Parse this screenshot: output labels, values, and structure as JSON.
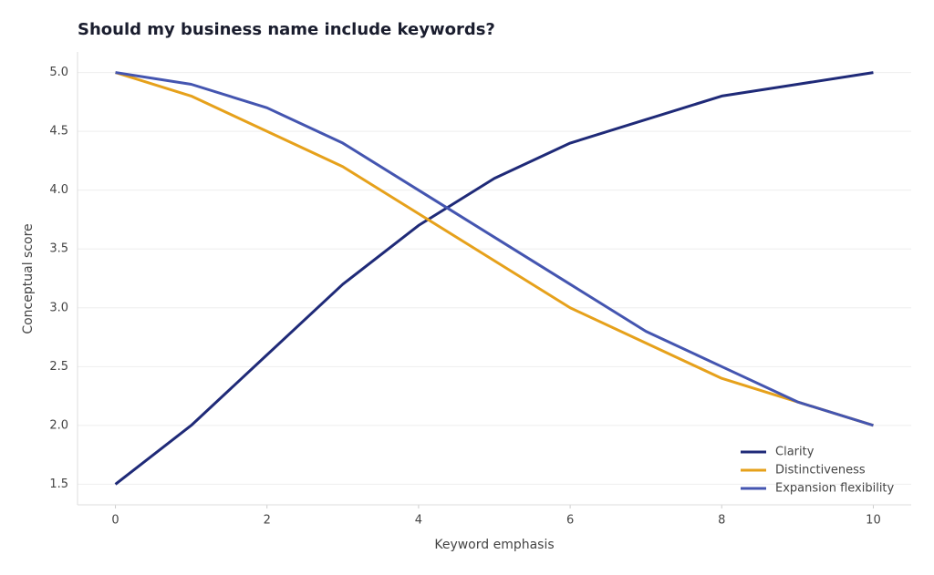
{
  "chart_data": {
    "type": "line",
    "title": "Should my business name include keywords?",
    "xlabel": "Keyword emphasis",
    "ylabel": "Conceptual score",
    "x": [
      0,
      1,
      2,
      3,
      4,
      5,
      6,
      7,
      8,
      9,
      10
    ],
    "series": [
      {
        "name": "Clarity",
        "color": "#1f2a78",
        "values": [
          1.5,
          2.0,
          2.6,
          3.2,
          3.7,
          4.1,
          4.4,
          4.6,
          4.8,
          4.9,
          5.0
        ]
      },
      {
        "name": "Distinctiveness",
        "color": "#e6a11b",
        "values": [
          5.0,
          4.8,
          4.5,
          4.2,
          3.8,
          3.4,
          3.0,
          2.7,
          2.4,
          2.2,
          2.0
        ]
      },
      {
        "name": "Expansion flexibility",
        "color": "#4455b0",
        "values": [
          5.0,
          4.9,
          4.7,
          4.4,
          4.0,
          3.6,
          3.2,
          2.8,
          2.5,
          2.2,
          2.0
        ]
      }
    ],
    "xlim": [
      -0.5,
      10.5
    ],
    "xticks": [
      0,
      2,
      4,
      6,
      8,
      10
    ],
    "ylim": [
      1.325,
      5.175
    ],
    "yticks": [
      1.5,
      {
        "value": 2,
        "label": "2.0"
      },
      2.5,
      {
        "value": 3,
        "label": "3.0"
      },
      3.5,
      {
        "value": 4,
        "label": "4.0"
      },
      4.5,
      {
        "value": 5,
        "label": "5.0"
      }
    ],
    "grid": true,
    "legend": "lower right"
  }
}
